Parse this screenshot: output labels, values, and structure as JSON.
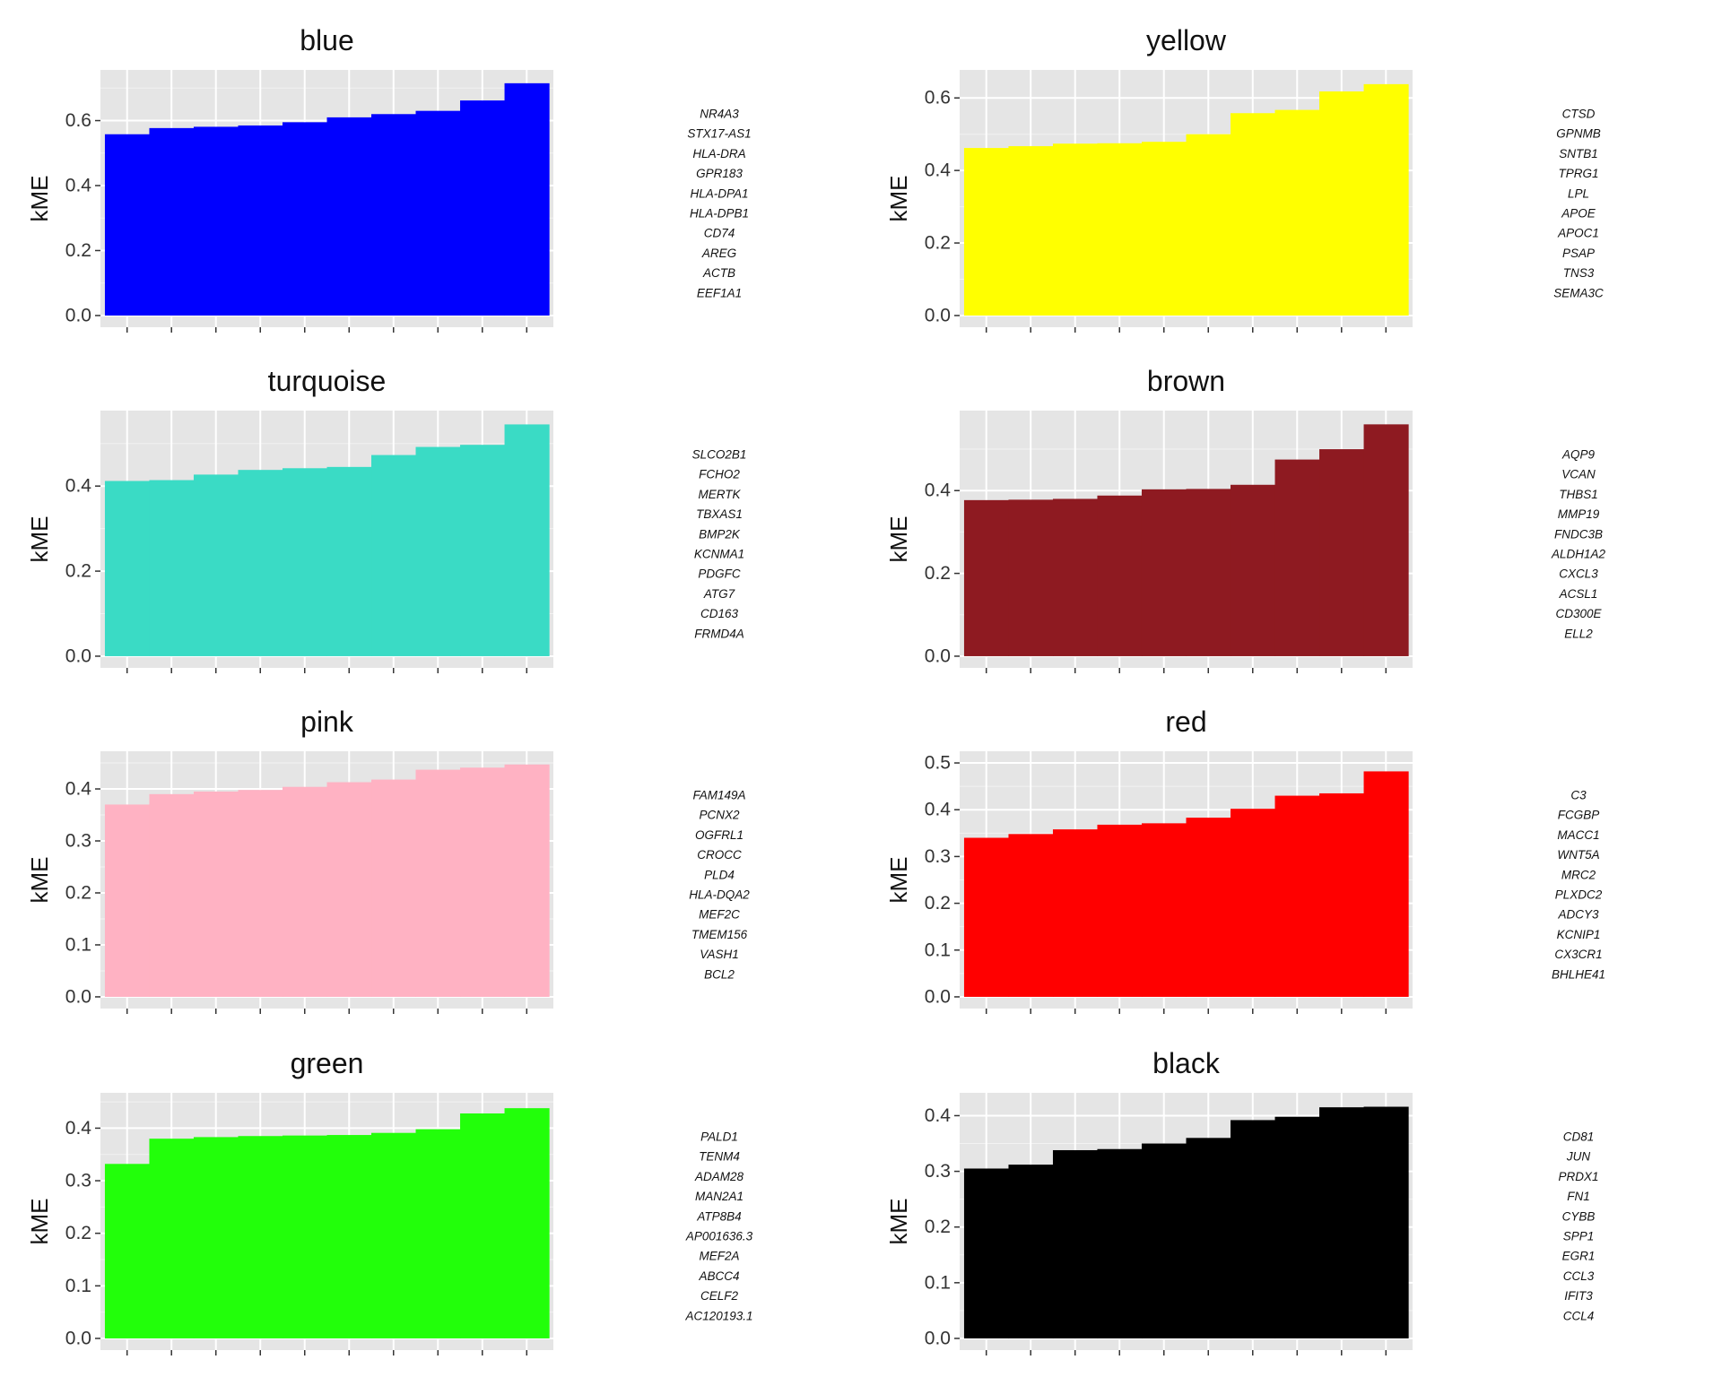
{
  "chart_data": [
    {
      "type": "bar",
      "title": "blue",
      "ylabel": "kME",
      "ylim": [
        0,
        0.72
      ],
      "yticks": [
        0.0,
        0.2,
        0.4,
        0.6
      ],
      "ytick_labels": [
        "0.0",
        "0.2",
        "0.4",
        "0.6"
      ],
      "color": "#0000FF",
      "values": [
        0.558,
        0.577,
        0.581,
        0.585,
        0.595,
        0.61,
        0.62,
        0.63,
        0.662,
        0.715
      ],
      "genes": [
        "NR4A3",
        "STX17-AS1",
        "HLA-DRA",
        "GPR183",
        "HLA-DPA1",
        "HLA-DPB1",
        "CD74",
        "AREG",
        "ACTB",
        "EEF1A1"
      ]
    },
    {
      "type": "bar",
      "title": "yellow",
      "ylabel": "kME",
      "ylim": [
        0,
        0.645
      ],
      "yticks": [
        0.0,
        0.2,
        0.4,
        0.6
      ],
      "ytick_labels": [
        "0.0",
        "0.2",
        "0.4",
        "0.6"
      ],
      "color": "#FFFF00",
      "values": [
        0.462,
        0.467,
        0.474,
        0.475,
        0.479,
        0.5,
        0.558,
        0.567,
        0.618,
        0.638
      ],
      "genes": [
        "CTSD",
        "GPNMB",
        "SNTB1",
        "TPRG1",
        "LPL",
        "APOE",
        "APOC1",
        "PSAP",
        "TNS3",
        "SEMA3C"
      ]
    },
    {
      "type": "bar",
      "title": "turquoise",
      "ylabel": "kME",
      "ylim": [
        0,
        0.55
      ],
      "yticks": [
        0.0,
        0.2,
        0.4
      ],
      "ytick_labels": [
        "0.0",
        "0.2",
        "0.4"
      ],
      "color": "#3ADBC5",
      "values": [
        0.412,
        0.414,
        0.427,
        0.438,
        0.442,
        0.445,
        0.473,
        0.492,
        0.497,
        0.545
      ],
      "genes": [
        "SLCO2B1",
        "FCHO2",
        "MERTK",
        "TBXAS1",
        "BMP2K",
        "KCNMA1",
        "PDGFC",
        "ATG7",
        "CD163",
        "FRMD4A"
      ]
    },
    {
      "type": "bar",
      "title": "brown",
      "ylabel": "kME",
      "ylim": [
        0,
        0.565
      ],
      "yticks": [
        0.0,
        0.2,
        0.4
      ],
      "ytick_labels": [
        "0.0",
        "0.2",
        "0.4"
      ],
      "color": "#8E1A21",
      "values": [
        0.377,
        0.378,
        0.38,
        0.388,
        0.403,
        0.404,
        0.414,
        0.475,
        0.5,
        0.56
      ],
      "genes": [
        "AQP9",
        "VCAN",
        "THBS1",
        "MMP19",
        "FNDC3B",
        "ALDH1A2",
        "CXCL3",
        "ACSL1",
        "CD300E",
        "ELL2"
      ]
    },
    {
      "type": "bar",
      "title": "pink",
      "ylabel": "kME",
      "ylim": [
        0,
        0.45
      ],
      "yticks": [
        0.0,
        0.1,
        0.2,
        0.3,
        0.4
      ],
      "ytick_labels": [
        "0.0",
        "0.1",
        "0.2",
        "0.3",
        "0.4"
      ],
      "color": "#FFB2C3",
      "values": [
        0.37,
        0.39,
        0.395,
        0.398,
        0.404,
        0.413,
        0.418,
        0.437,
        0.441,
        0.447
      ],
      "genes": [
        "FAM149A",
        "PCNX2",
        "OGFRL1",
        "CROCC",
        "PLD4",
        "HLA-DQA2",
        "MEF2C",
        "TMEM156",
        "VASH1",
        "BCL2"
      ]
    },
    {
      "type": "bar",
      "title": "red",
      "ylabel": "kME",
      "ylim": [
        0,
        0.5
      ],
      "yticks": [
        0.0,
        0.1,
        0.2,
        0.3,
        0.4,
        0.5
      ],
      "ytick_labels": [
        "0.0",
        "0.1",
        "0.2",
        "0.3",
        "0.4",
        "0.5"
      ],
      "color": "#FF0000",
      "values": [
        0.34,
        0.348,
        0.358,
        0.368,
        0.371,
        0.383,
        0.402,
        0.43,
        0.435,
        0.482
      ],
      "genes": [
        "C3",
        "FCGBP",
        "MACC1",
        "WNT5A",
        "MRC2",
        "PLXDC2",
        "ADCY3",
        "KCNIP1",
        "CX3CR1",
        "BHLHE41"
      ]
    },
    {
      "type": "bar",
      "title": "green",
      "ylabel": "kME",
      "ylim": [
        0,
        0.445
      ],
      "yticks": [
        0.0,
        0.1,
        0.2,
        0.3,
        0.4
      ],
      "ytick_labels": [
        "0.0",
        "0.1",
        "0.2",
        "0.3",
        "0.4"
      ],
      "color": "#22FF0A",
      "values": [
        0.332,
        0.38,
        0.383,
        0.385,
        0.386,
        0.387,
        0.391,
        0.398,
        0.428,
        0.438
      ],
      "genes": [
        "PALD1",
        "TENM4",
        "ADAM28",
        "MAN2A1",
        "ATP8B4",
        "AP001636.3",
        "MEF2A",
        "ABCC4",
        "CELF2",
        "AC120193.1"
      ]
    },
    {
      "type": "bar",
      "title": "black",
      "ylabel": "kME",
      "ylim": [
        0,
        0.42
      ],
      "yticks": [
        0.0,
        0.1,
        0.2,
        0.3,
        0.4
      ],
      "ytick_labels": [
        "0.0",
        "0.1",
        "0.2",
        "0.3",
        "0.4"
      ],
      "color": "#000000",
      "values": [
        0.305,
        0.312,
        0.338,
        0.34,
        0.35,
        0.36,
        0.392,
        0.398,
        0.415,
        0.416
      ],
      "genes": [
        "CD81",
        "JUN",
        "PRDX1",
        "FN1",
        "CYBB",
        "SPP1",
        "EGR1",
        "CCL3",
        "IFIT3",
        "CCL4"
      ]
    }
  ]
}
